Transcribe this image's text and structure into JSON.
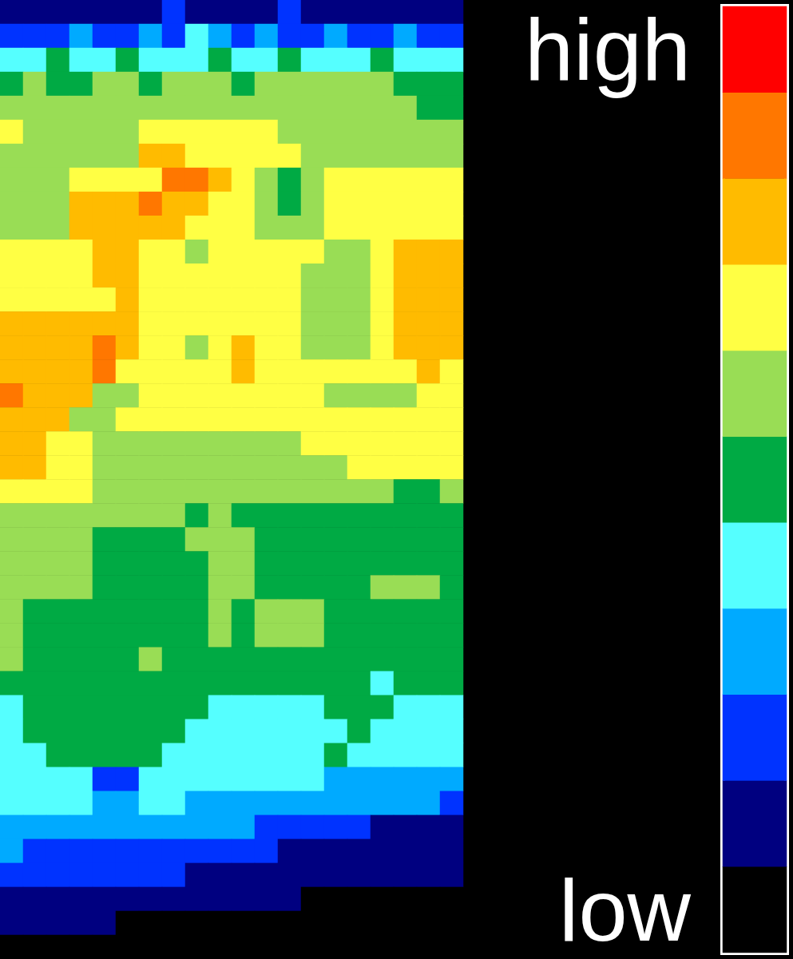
{
  "chart_data": {
    "type": "heatmap",
    "tick_labels": false,
    "cells": [
      [
        1,
        1,
        1,
        1,
        1,
        1,
        1,
        2,
        1,
        1,
        1,
        1,
        2,
        1,
        1,
        1,
        1,
        1,
        1,
        1
      ],
      [
        2,
        2,
        2,
        3,
        2,
        2,
        3,
        2,
        4,
        3,
        2,
        3,
        2,
        2,
        3,
        2,
        2,
        3,
        2,
        2
      ],
      [
        4,
        4,
        5,
        4,
        4,
        5,
        4,
        4,
        4,
        5,
        4,
        4,
        5,
        4,
        4,
        4,
        5,
        4,
        4,
        4
      ],
      [
        5,
        6,
        5,
        5,
        6,
        6,
        5,
        6,
        6,
        6,
        5,
        6,
        6,
        6,
        6,
        6,
        6,
        5,
        5,
        5
      ],
      [
        6,
        6,
        6,
        6,
        6,
        6,
        6,
        6,
        6,
        6,
        6,
        6,
        6,
        6,
        6,
        6,
        6,
        6,
        5,
        5
      ],
      [
        7,
        6,
        6,
        6,
        6,
        6,
        7,
        7,
        7,
        7,
        7,
        7,
        6,
        6,
        6,
        6,
        6,
        6,
        6,
        6
      ],
      [
        6,
        6,
        6,
        6,
        6,
        6,
        8,
        8,
        7,
        7,
        7,
        7,
        7,
        6,
        6,
        6,
        6,
        6,
        6,
        6
      ],
      [
        6,
        6,
        6,
        7,
        7,
        7,
        7,
        9,
        9,
        8,
        7,
        6,
        5,
        6,
        7,
        7,
        7,
        7,
        7,
        7
      ],
      [
        6,
        6,
        6,
        8,
        8,
        8,
        9,
        8,
        8,
        7,
        7,
        6,
        5,
        6,
        7,
        7,
        7,
        7,
        7,
        7
      ],
      [
        6,
        6,
        6,
        8,
        8,
        8,
        8,
        8,
        7,
        7,
        7,
        6,
        6,
        6,
        7,
        7,
        7,
        7,
        7,
        7
      ],
      [
        7,
        7,
        7,
        7,
        8,
        8,
        7,
        7,
        6,
        7,
        7,
        7,
        7,
        7,
        6,
        6,
        7,
        8,
        8,
        8
      ],
      [
        7,
        7,
        7,
        7,
        8,
        8,
        7,
        7,
        7,
        7,
        7,
        7,
        7,
        6,
        6,
        6,
        7,
        8,
        8,
        8
      ],
      [
        7,
        7,
        7,
        7,
        7,
        8,
        7,
        7,
        7,
        7,
        7,
        7,
        7,
        6,
        6,
        6,
        7,
        8,
        8,
        8
      ],
      [
        8,
        8,
        8,
        8,
        8,
        8,
        7,
        7,
        7,
        7,
        7,
        7,
        7,
        6,
        6,
        6,
        7,
        8,
        8,
        8
      ],
      [
        8,
        8,
        8,
        8,
        9,
        8,
        7,
        7,
        6,
        7,
        8,
        7,
        7,
        6,
        6,
        6,
        7,
        8,
        8,
        8
      ],
      [
        8,
        8,
        8,
        8,
        9,
        7,
        7,
        7,
        7,
        7,
        8,
        7,
        7,
        7,
        7,
        7,
        7,
        7,
        8,
        7
      ],
      [
        9,
        8,
        8,
        8,
        6,
        6,
        7,
        7,
        7,
        7,
        7,
        7,
        7,
        7,
        6,
        6,
        6,
        6,
        7,
        7
      ],
      [
        8,
        8,
        8,
        6,
        6,
        7,
        7,
        7,
        7,
        7,
        7,
        7,
        7,
        7,
        7,
        7,
        7,
        7,
        7,
        7
      ],
      [
        8,
        8,
        7,
        7,
        6,
        6,
        6,
        6,
        6,
        6,
        6,
        6,
        6,
        7,
        7,
        7,
        7,
        7,
        7,
        7
      ],
      [
        8,
        8,
        7,
        7,
        6,
        6,
        6,
        6,
        6,
        6,
        6,
        6,
        6,
        6,
        6,
        7,
        7,
        7,
        7,
        7
      ],
      [
        7,
        7,
        7,
        7,
        6,
        6,
        6,
        6,
        6,
        6,
        6,
        6,
        6,
        6,
        6,
        6,
        6,
        5,
        5,
        6
      ],
      [
        6,
        6,
        6,
        6,
        6,
        6,
        6,
        6,
        5,
        6,
        5,
        5,
        5,
        5,
        5,
        5,
        5,
        5,
        5,
        5
      ],
      [
        6,
        6,
        6,
        6,
        5,
        5,
        5,
        5,
        6,
        6,
        6,
        5,
        5,
        5,
        5,
        5,
        5,
        5,
        5,
        5
      ],
      [
        6,
        6,
        6,
        6,
        5,
        5,
        5,
        5,
        5,
        6,
        6,
        5,
        5,
        5,
        5,
        5,
        5,
        5,
        5,
        5
      ],
      [
        6,
        6,
        6,
        6,
        5,
        5,
        5,
        5,
        5,
        6,
        6,
        5,
        5,
        5,
        5,
        5,
        6,
        6,
        6,
        5
      ],
      [
        6,
        5,
        5,
        5,
        5,
        5,
        5,
        5,
        5,
        6,
        5,
        6,
        6,
        6,
        5,
        5,
        5,
        5,
        5,
        5
      ],
      [
        6,
        5,
        5,
        5,
        5,
        5,
        5,
        5,
        5,
        6,
        5,
        6,
        6,
        6,
        5,
        5,
        5,
        5,
        5,
        5
      ],
      [
        6,
        5,
        5,
        5,
        5,
        5,
        6,
        5,
        5,
        5,
        5,
        5,
        5,
        5,
        5,
        5,
        5,
        5,
        5,
        5
      ],
      [
        5,
        5,
        5,
        5,
        5,
        5,
        5,
        5,
        5,
        5,
        5,
        5,
        5,
        5,
        5,
        5,
        4,
        5,
        5,
        5
      ],
      [
        4,
        5,
        5,
        5,
        5,
        5,
        5,
        5,
        5,
        4,
        4,
        4,
        4,
        4,
        5,
        5,
        5,
        4,
        4,
        4
      ],
      [
        4,
        5,
        5,
        5,
        5,
        5,
        5,
        5,
        4,
        4,
        4,
        4,
        4,
        4,
        4,
        5,
        4,
        4,
        4,
        4
      ],
      [
        4,
        4,
        5,
        5,
        5,
        5,
        5,
        4,
        4,
        4,
        4,
        4,
        4,
        4,
        5,
        4,
        4,
        4,
        4,
        4
      ],
      [
        4,
        4,
        4,
        4,
        2,
        2,
        4,
        4,
        4,
        4,
        4,
        4,
        4,
        4,
        3,
        3,
        3,
        3,
        3,
        3
      ],
      [
        4,
        4,
        4,
        4,
        3,
        3,
        4,
        4,
        3,
        3,
        3,
        3,
        3,
        3,
        3,
        3,
        3,
        3,
        3,
        2
      ],
      [
        3,
        3,
        3,
        3,
        3,
        3,
        3,
        3,
        3,
        3,
        3,
        2,
        2,
        2,
        2,
        2,
        1,
        1,
        1,
        1
      ],
      [
        3,
        2,
        2,
        2,
        2,
        2,
        2,
        2,
        2,
        2,
        2,
        2,
        1,
        1,
        1,
        1,
        1,
        1,
        1,
        1
      ],
      [
        2,
        2,
        2,
        2,
        2,
        2,
        2,
        2,
        1,
        1,
        1,
        1,
        1,
        1,
        1,
        1,
        1,
        1,
        1,
        1
      ],
      [
        1,
        1,
        1,
        1,
        1,
        1,
        1,
        1,
        1,
        1,
        1,
        1,
        1,
        0,
        0,
        0,
        0,
        0,
        0,
        0
      ],
      [
        1,
        1,
        1,
        1,
        1,
        0,
        0,
        0,
        0,
        0,
        0,
        0,
        0,
        0,
        0,
        0,
        0,
        0,
        0,
        0
      ],
      [
        0,
        0,
        0,
        0,
        0,
        0,
        0,
        0,
        0,
        0,
        0,
        0,
        0,
        0,
        0,
        0,
        0,
        0,
        0,
        0
      ]
    ],
    "colorbar": {
      "range": [
        0,
        10
      ],
      "ticks": [
        {
          "value": 10,
          "label": "high"
        },
        {
          "value": 0,
          "label": "low"
        }
      ],
      "colors": [
        "#000000",
        "#000080",
        "#0033ff",
        "#00aaff",
        "#55ffff",
        "#00aa44",
        "#99dd55",
        "#ffff44",
        "#ffbb00",
        "#ff7700",
        "#ff0000"
      ]
    }
  }
}
